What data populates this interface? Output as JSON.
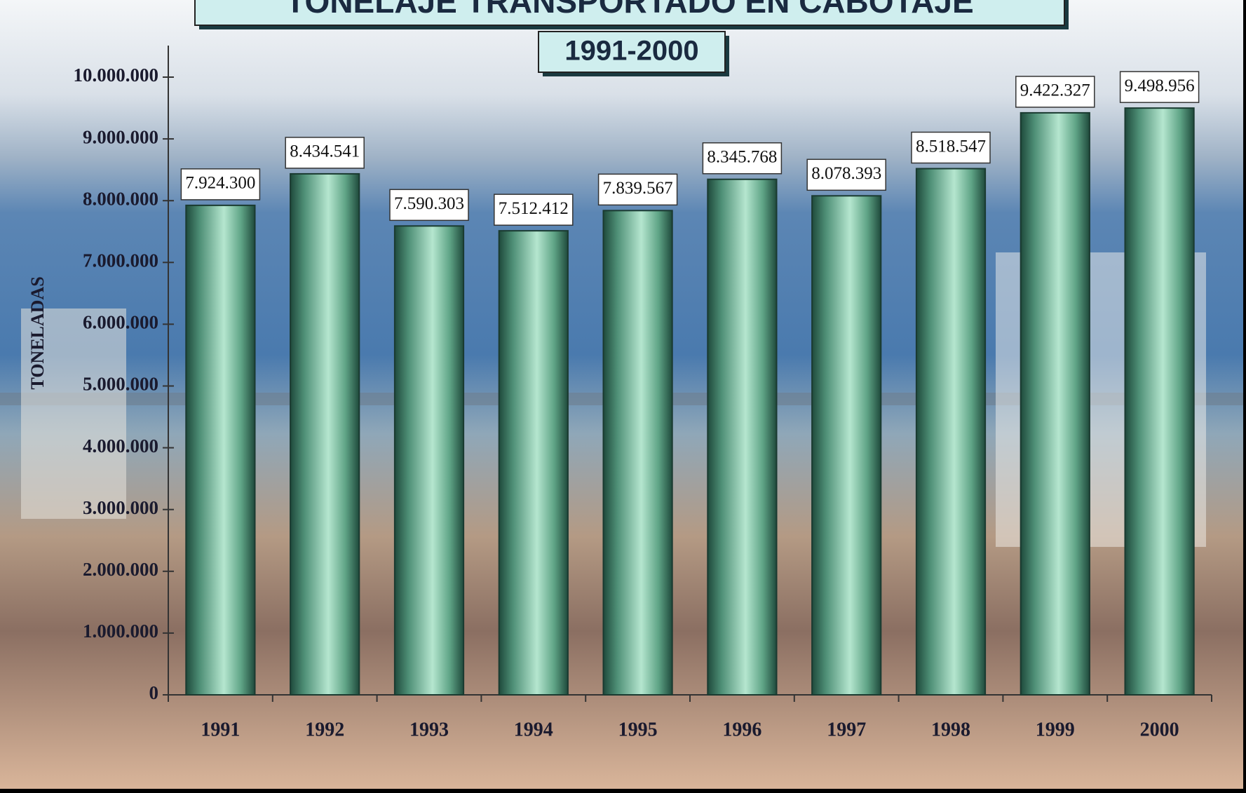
{
  "chart_data": {
    "type": "bar",
    "title": "TONELAJE TRANSPORTADO EN CABOTAJE",
    "subtitle": "1991-2000",
    "y_label": "TONELADAS",
    "categories": [
      "1991",
      "1992",
      "1993",
      "1994",
      "1995",
      "1996",
      "1997",
      "1998",
      "1999",
      "2000"
    ],
    "values": [
      7924300,
      8434541,
      7590303,
      7512412,
      7839567,
      8345768,
      8078393,
      8518547,
      9422327,
      9498956
    ],
    "value_labels": [
      "7.924.300",
      "8.434.541",
      "7.590.303",
      "7.512.412",
      "7.839.567",
      "8.345.768",
      "8.078.393",
      "8.518.547",
      "9.422.327",
      "9.498.956"
    ],
    "color": "#7fc7a5",
    "ylim": [
      0,
      10000000
    ],
    "yticks": [
      0,
      {
        "value": 1000000,
        "label": "1.000.000"
      },
      {
        "value": 2000000,
        "label": "2.000.000"
      },
      {
        "value": 3000000,
        "label": "3.000.000"
      },
      {
        "value": 4000000,
        "label": "4.000.000"
      },
      {
        "value": 5000000,
        "label": "5.000.000"
      },
      {
        "value": 6000000,
        "label": "6.000.000"
      },
      {
        "value": 7000000,
        "label": "7.000.000"
      },
      {
        "value": 8000000,
        "label": "8.000.000"
      },
      {
        "value": 9000000,
        "label": "9.000.000"
      },
      {
        "value": 10000000,
        "label": "10.000.000"
      }
    ],
    "grid": false
  }
}
